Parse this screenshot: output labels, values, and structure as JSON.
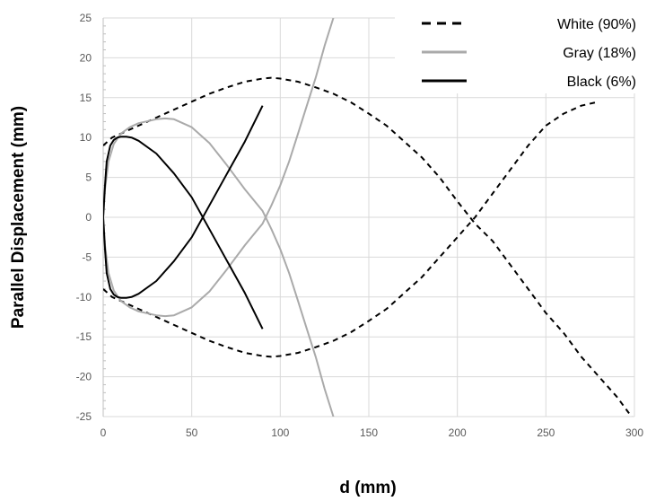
{
  "chart_data": {
    "type": "line",
    "title": "",
    "xlabel": "d (mm)",
    "ylabel": "Parallel Displacement (mm)",
    "xlim": [
      0,
      300
    ],
    "ylim": [
      -25,
      25
    ],
    "x_ticks": [
      0,
      50,
      100,
      150,
      200,
      250,
      300
    ],
    "y_ticks": [
      -25,
      -20,
      -15,
      -10,
      -5,
      0,
      5,
      10,
      15,
      20,
      25
    ],
    "grid": true,
    "legend_position": "top-right",
    "series": [
      {
        "name": "White (90%)",
        "color": "#000000",
        "style": "dashed",
        "branches": [
          {
            "x": [
              0,
              5,
              10,
              20,
              30,
              40,
              50,
              60,
              70,
              80,
              90,
              95,
              100,
              110,
              120,
              130,
              140,
              150,
              160,
              170,
              180,
              190,
              200,
              210,
              220,
              230,
              240,
              250,
              260,
              270,
              280,
              290,
              300
            ],
            "y": [
              9,
              10,
              10.5,
              11.5,
              12.5,
              13.5,
              14.5,
              15.5,
              16.3,
              17,
              17.4,
              17.5,
              17.4,
              17,
              16.3,
              15.5,
              14.4,
              13,
              11.5,
              9.5,
              7.5,
              5,
              2,
              -0.8,
              -3,
              -6,
              -9,
              -12,
              -14.5,
              -17.5,
              -20,
              -22.5,
              -25.5
            ]
          },
          {
            "x": [
              0,
              5,
              10,
              20,
              30,
              40,
              50,
              60,
              70,
              80,
              90,
              95,
              100,
              110,
              120,
              130,
              140,
              150,
              160,
              170,
              180,
              190,
              200,
              210,
              220,
              230,
              240,
              250,
              260,
              270,
              280
            ],
            "y": [
              -9,
              -10,
              -10.5,
              -11.5,
              -12.5,
              -13.5,
              -14.5,
              -15.5,
              -16.3,
              -17,
              -17.4,
              -17.5,
              -17.4,
              -17,
              -16.3,
              -15.5,
              -14.4,
              -13,
              -11.5,
              -9.5,
              -7.5,
              -5,
              -2.5,
              0,
              3,
              6,
              9,
              11.5,
              13,
              14,
              14.5
            ]
          }
        ]
      },
      {
        "name": "Gray (18%)",
        "color": "#aaaaaa",
        "style": "solid",
        "branches": [
          {
            "x": [
              0,
              1,
              3,
              6,
              10,
              15,
              20,
              30,
              35,
              40,
              50,
              60,
              70,
              80,
              90,
              95,
              100,
              105,
              110,
              115,
              120,
              125,
              130
            ],
            "y": [
              0,
              3.5,
              7,
              9.2,
              10.5,
              11.3,
              11.8,
              12.3,
              12.4,
              12.3,
              11.3,
              9.3,
              6.5,
              3.5,
              0.8,
              -1.5,
              -4,
              -7,
              -10.5,
              -14,
              -17.5,
              -21.5,
              -25
            ]
          },
          {
            "x": [
              0,
              1,
              3,
              6,
              10,
              15,
              20,
              30,
              35,
              40,
              50,
              60,
              70,
              80,
              90,
              95,
              100,
              105,
              110,
              115,
              120,
              125,
              130
            ],
            "y": [
              0,
              -3.5,
              -7,
              -9.2,
              -10.5,
              -11.3,
              -11.8,
              -12.3,
              -12.4,
              -12.3,
              -11.3,
              -9.3,
              -6.5,
              -3.5,
              -0.8,
              1.5,
              4,
              7,
              10.5,
              14,
              17.5,
              21.5,
              25
            ]
          }
        ]
      },
      {
        "name": "Black (6%)",
        "color": "#000000",
        "style": "solid",
        "branches": [
          {
            "x": [
              0,
              1,
              2,
              4,
              6,
              8,
              10,
              13,
              16,
              20,
              30,
              40,
              50,
              60,
              70,
              80,
              90
            ],
            "y": [
              0,
              4,
              7,
              9,
              9.7,
              10,
              10.1,
              10.1,
              10,
              9.6,
              8,
              5.5,
              2.5,
              -1.5,
              -5.5,
              -9.5,
              -14
            ]
          },
          {
            "x": [
              0,
              1,
              2,
              4,
              6,
              8,
              10,
              13,
              16,
              20,
              30,
              40,
              50,
              60,
              70,
              80,
              90
            ],
            "y": [
              0,
              -4,
              -7,
              -9,
              -9.7,
              -10,
              -10.1,
              -10.1,
              -10,
              -9.6,
              -8,
              -5.5,
              -2.5,
              1.5,
              5.5,
              9.5,
              14
            ]
          }
        ]
      }
    ]
  }
}
